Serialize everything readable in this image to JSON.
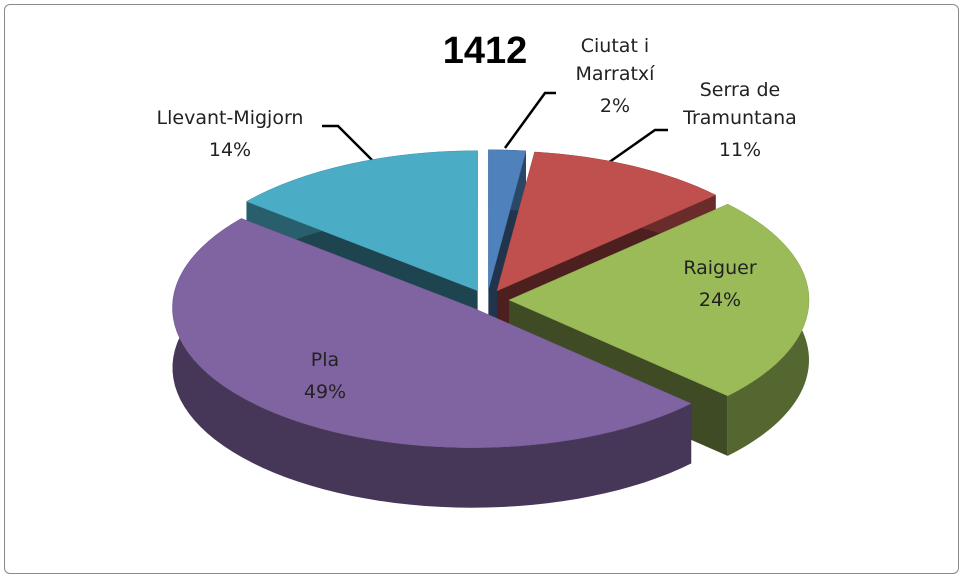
{
  "chart_data": {
    "type": "pie3d",
    "title": "1412",
    "categories": [
      "Ciutat i Marratxí",
      "Serra de Tramuntana",
      "Raiguer",
      "Pla",
      "Llevant-Migjorn"
    ],
    "values": [
      2,
      11,
      24,
      49,
      14
    ],
    "value_labels": [
      "2%",
      "11%",
      "24%",
      "49%",
      "14%"
    ],
    "colors": [
      "#4f81bd",
      "#c0504d",
      "#9bbb59",
      "#8064a2",
      "#4bacc6"
    ]
  }
}
